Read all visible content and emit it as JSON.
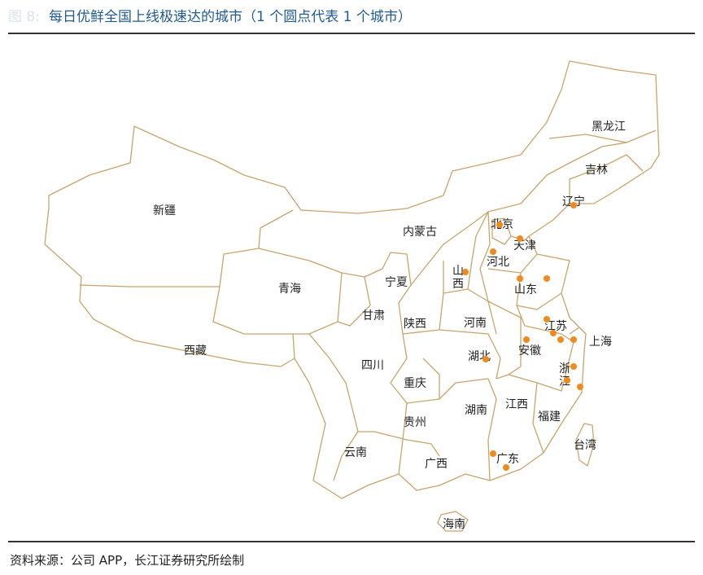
{
  "figure_label": "图 8:",
  "title": "每日优鲜全国上线极速达的城市（1 个圆点代表 1 个城市）",
  "source": "资料来源：公司 APP，长江证券研究所绘制",
  "colors": {
    "border": "#c9a46a",
    "dot": "#f08a1c",
    "title": "#1f5a96"
  },
  "provinces": [
    "黑龙江",
    "吉林",
    "辽宁",
    "北京",
    "天津",
    "河北",
    "山西",
    "山东",
    "内蒙古",
    "宁夏",
    "甘肃",
    "陕西",
    "河南",
    "江苏",
    "上海",
    "安徽",
    "湖北",
    "浙江",
    "青海",
    "新疆",
    "西藏",
    "四川",
    "重庆",
    "贵州",
    "湖南",
    "江西",
    "福建",
    "云南",
    "广西",
    "广东",
    "台湾",
    "海南"
  ],
  "city_dots": {
    "辽宁": 1,
    "北京": 1,
    "天津": 1,
    "河北": 1,
    "山西": 1,
    "山东": 2,
    "江苏": 3,
    "上海": 1,
    "安徽": 1,
    "湖北": 1,
    "浙江": 3,
    "广东": 2
  },
  "total_cities": 18
}
